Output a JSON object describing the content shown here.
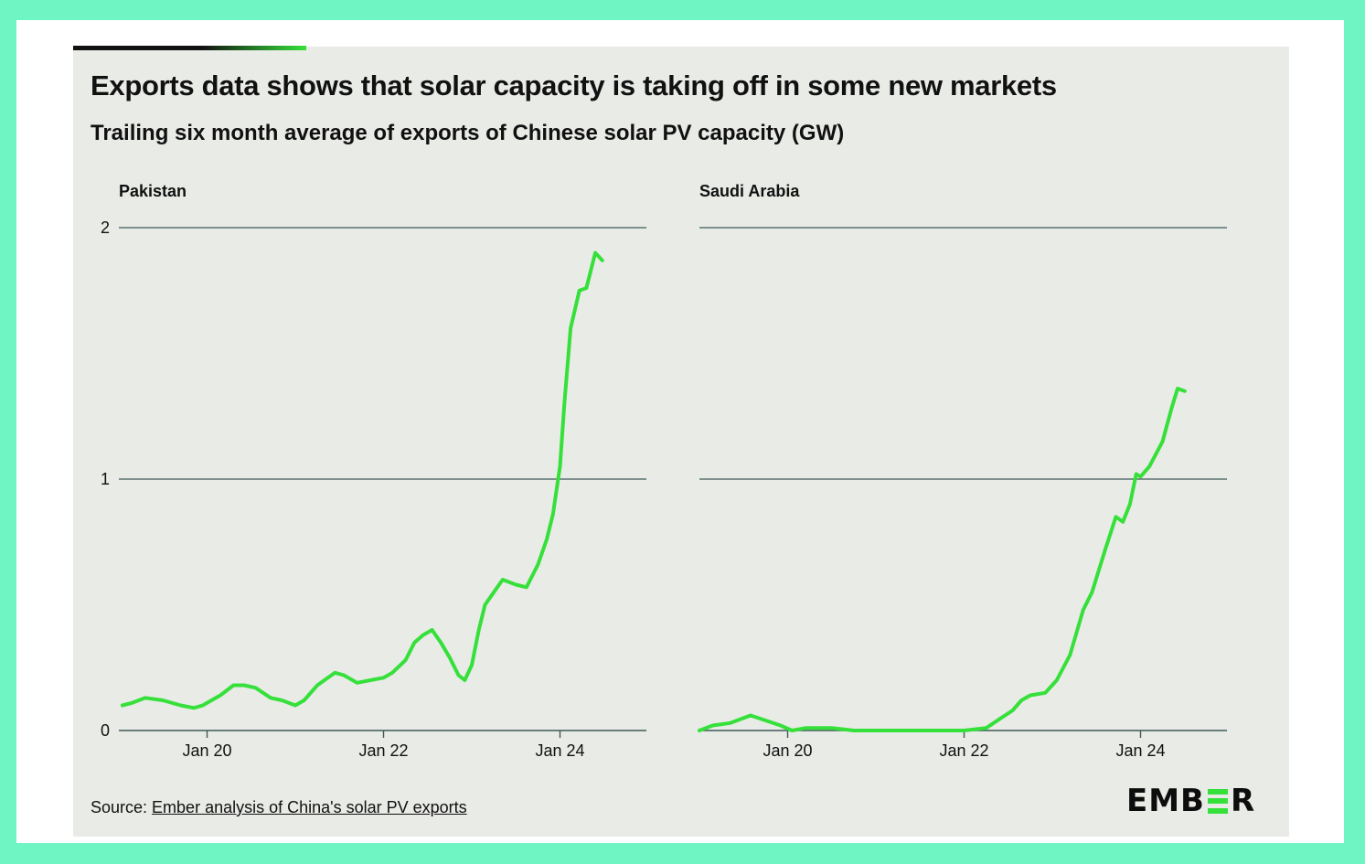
{
  "title": "Exports data shows that solar capacity is taking off in some new markets",
  "subtitle": "Trailing six month average of exports of Chinese solar PV capacity (GW)",
  "source": {
    "prefix": "Source: ",
    "link_text": "Ember analysis of China's solar PV exports"
  },
  "logo": {
    "letters_before": "EMB",
    "letters_after": "R",
    "accent_color": "#36e03a"
  },
  "colors": {
    "line": "#36e03a",
    "gridline": "#3f5a58",
    "background": "#e9ebe7"
  },
  "chart_data": [
    {
      "type": "line",
      "title": "Pakistan",
      "ylim": [
        0,
        2
      ],
      "yticks": [
        "0",
        "1",
        "2"
      ],
      "xticks": [
        {
          "label": "Jan 20",
          "x": 2020.0
        },
        {
          "label": "Jan 22",
          "x": 2022.0
        },
        {
          "label": "Jan 24",
          "x": 2024.0
        }
      ],
      "xlim": [
        2019.0,
        2025.0
      ],
      "series": [
        {
          "x": [
            2019.04,
            2019.15,
            2019.3,
            2019.5,
            2019.7,
            2019.85,
            2019.95,
            2020.05,
            2020.15,
            2020.3,
            2020.42,
            2020.55,
            2020.72,
            2020.85,
            2021.0,
            2021.1,
            2021.25,
            2021.45,
            2021.55,
            2021.7,
            2021.85,
            2022.0,
            2022.1,
            2022.25,
            2022.35,
            2022.45,
            2022.55,
            2022.65,
            2022.75,
            2022.85,
            2022.92,
            2023.0,
            2023.08,
            2023.15,
            2023.25,
            2023.35,
            2023.5,
            2023.62,
            2023.75,
            2023.85,
            2023.92,
            2024.0,
            2024.05,
            2024.12,
            2024.22,
            2024.3,
            2024.4,
            2024.48
          ],
          "y": [
            0.1,
            0.11,
            0.13,
            0.12,
            0.1,
            0.09,
            0.1,
            0.12,
            0.14,
            0.18,
            0.18,
            0.17,
            0.13,
            0.12,
            0.1,
            0.12,
            0.18,
            0.23,
            0.22,
            0.19,
            0.2,
            0.21,
            0.23,
            0.28,
            0.35,
            0.38,
            0.4,
            0.35,
            0.29,
            0.22,
            0.2,
            0.26,
            0.4,
            0.5,
            0.55,
            0.6,
            0.58,
            0.57,
            0.66,
            0.76,
            0.86,
            1.05,
            1.3,
            1.6,
            1.75,
            1.76,
            1.9,
            1.87
          ]
        }
      ]
    },
    {
      "type": "line",
      "title": "Saudi Arabia",
      "ylim": [
        0,
        2
      ],
      "yticks": [],
      "xticks": [
        {
          "label": "Jan 20",
          "x": 2020.0
        },
        {
          "label": "Jan 22",
          "x": 2022.0
        },
        {
          "label": "Jan 24",
          "x": 2024.0
        }
      ],
      "xlim": [
        2019.0,
        2025.0
      ],
      "series": [
        {
          "x": [
            2019.0,
            2019.15,
            2019.35,
            2019.58,
            2019.75,
            2019.92,
            2020.05,
            2020.2,
            2020.5,
            2020.75,
            2021.0,
            2021.5,
            2022.0,
            2022.25,
            2022.42,
            2022.55,
            2022.65,
            2022.75,
            2022.92,
            2023.05,
            2023.2,
            2023.35,
            2023.45,
            2023.6,
            2023.72,
            2023.8,
            2023.88,
            2023.95,
            2024.0,
            2024.1,
            2024.25,
            2024.35,
            2024.42,
            2024.5
          ],
          "y": [
            0.0,
            0.02,
            0.03,
            0.06,
            0.04,
            0.02,
            0.0,
            0.01,
            0.01,
            0.0,
            0.0,
            0.0,
            0.0,
            0.01,
            0.05,
            0.08,
            0.12,
            0.14,
            0.15,
            0.2,
            0.3,
            0.48,
            0.55,
            0.72,
            0.85,
            0.83,
            0.9,
            1.02,
            1.01,
            1.05,
            1.15,
            1.28,
            1.36,
            1.35
          ]
        }
      ]
    }
  ]
}
